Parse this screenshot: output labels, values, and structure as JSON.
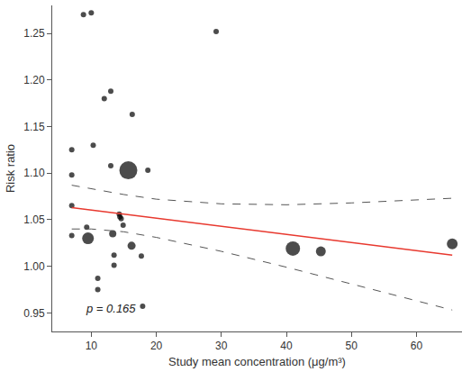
{
  "chart_data": {
    "type": "scatter",
    "x_label": "Study mean concentration (μg/m³)",
    "y_label": "Risk ratio",
    "xlim": [
      4,
      67
    ],
    "ylim": [
      0.93,
      1.28
    ],
    "xticks": [
      10,
      20,
      30,
      40,
      50,
      60
    ],
    "yticks": [
      0.95,
      {
        "value": 1.0,
        "label": "1.00"
      },
      1.05,
      {
        "value": 1.1,
        "label": "1.10"
      },
      1.15,
      {
        "value": 1.2,
        "label": "1.20"
      },
      1.25
    ],
    "grid": false,
    "annotations": [
      {
        "text": "p = 0.165",
        "x": 13,
        "y": 0.955
      }
    ],
    "series": [
      {
        "type": "scatter",
        "marker": "circle",
        "color": "#000000",
        "x": [
          8.8,
          10,
          29.2,
          7,
          7,
          7,
          7,
          10.3,
          12,
          13,
          16.3,
          13,
          15.7,
          18.7,
          9.3,
          9.5,
          13.3,
          13.5,
          13.5,
          14.3,
          14.4,
          14.6,
          14.9,
          16.2,
          17.7,
          17.9,
          11,
          11,
          41,
          45.3,
          65.5
        ],
        "values": [
          1.27,
          1.272,
          1.252,
          1.125,
          1.098,
          1.065,
          1.033,
          1.13,
          1.18,
          1.188,
          1.163,
          1.108,
          1.103,
          1.103,
          1.042,
          1.03,
          1.035,
          1.012,
          1.001,
          1.056,
          1.053,
          1.051,
          1.044,
          1.022,
          1.011,
          0.957,
          0.987,
          0.975,
          1.019,
          1.016,
          1.024
        ],
        "sizes": [
          6,
          6,
          6,
          6,
          6,
          6,
          6,
          6,
          6,
          6,
          6,
          6,
          20,
          6,
          6,
          13,
          8,
          6,
          6,
          6,
          6,
          6,
          6,
          9,
          6,
          6,
          6,
          6,
          16,
          11,
          12
        ]
      },
      {
        "type": "line",
        "color": "#e8392f",
        "line_style": "solid",
        "x": [
          7,
          65.5
        ],
        "values": [
          1.063,
          1.012
        ]
      },
      {
        "type": "line",
        "color": "#555555",
        "line_style": "dashed",
        "x": [
          7,
          10,
          15,
          20,
          30,
          40,
          50,
          65.5
        ],
        "values": [
          1.04,
          1.04,
          1.037,
          1.031,
          1.016,
          0.999,
          0.981,
          0.953
        ]
      },
      {
        "type": "line",
        "color": "#555555",
        "line_style": "dashed",
        "x": [
          7,
          10,
          15,
          20,
          30,
          40,
          50,
          65.5
        ],
        "values": [
          1.087,
          1.083,
          1.077,
          1.072,
          1.067,
          1.066,
          1.068,
          1.073
        ]
      }
    ]
  }
}
